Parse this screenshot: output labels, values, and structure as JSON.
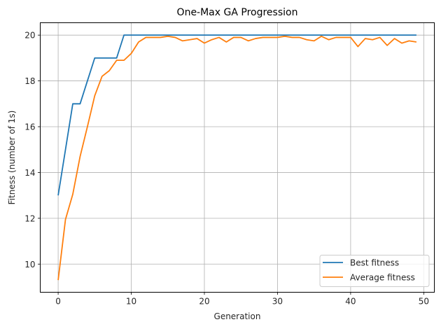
{
  "chart_data": {
    "type": "line",
    "title": "One-Max GA Progression",
    "xlabel": "Generation",
    "ylabel": "Fitness (number of 1s)",
    "xlim": [
      -2.45,
      51.45
    ],
    "ylim": [
      8.77,
      20.54
    ],
    "xticks": [
      0,
      10,
      20,
      30,
      40,
      50
    ],
    "yticks": [
      10,
      12,
      14,
      16,
      18,
      20
    ],
    "grid": true,
    "legend_position": "lower right",
    "x": [
      0,
      1,
      2,
      3,
      4,
      5,
      6,
      7,
      8,
      9,
      10,
      11,
      12,
      13,
      14,
      15,
      16,
      17,
      18,
      19,
      20,
      21,
      22,
      23,
      24,
      25,
      26,
      27,
      28,
      29,
      30,
      31,
      32,
      33,
      34,
      35,
      36,
      37,
      38,
      39,
      40,
      41,
      42,
      43,
      44,
      45,
      46,
      47,
      48,
      49
    ],
    "series": [
      {
        "name": "Best fitness",
        "color": "#1f77b4",
        "values": [
          13,
          15,
          17,
          17,
          18,
          19,
          19,
          19,
          19,
          20,
          20,
          20,
          20,
          20,
          20,
          20,
          20,
          20,
          20,
          20,
          20,
          20,
          20,
          20,
          20,
          20,
          20,
          20,
          20,
          20,
          20,
          20,
          20,
          20,
          20,
          20,
          20,
          20,
          20,
          20,
          20,
          20,
          20,
          20,
          20,
          20,
          20,
          20,
          20,
          20
        ]
      },
      {
        "name": "Average fitness",
        "color": "#ff7f0e",
        "values": [
          9.3,
          11.95,
          13.05,
          14.7,
          16.0,
          17.35,
          18.2,
          18.45,
          18.9,
          18.9,
          19.2,
          19.7,
          19.9,
          19.9,
          19.9,
          19.95,
          19.9,
          19.75,
          19.8,
          19.85,
          19.65,
          19.8,
          19.9,
          19.7,
          19.9,
          19.9,
          19.75,
          19.85,
          19.9,
          19.9,
          19.9,
          19.95,
          19.9,
          19.9,
          19.8,
          19.75,
          19.95,
          19.8,
          19.9,
          19.9,
          19.9,
          19.5,
          19.85,
          19.8,
          19.9,
          19.55,
          19.85,
          19.65,
          19.75,
          19.7
        ]
      }
    ]
  }
}
